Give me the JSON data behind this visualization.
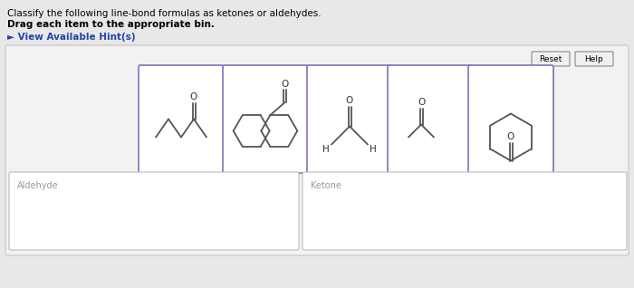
{
  "title_line1": "Classify the following line-bond formulas as ketones or aldehydes.",
  "title_line2": "Drag each item to the appropriate bin.",
  "hint_text": "► View Available Hint(s)",
  "bg_color": "#e8e8e8",
  "main_box_bg": "#f2f2f2",
  "main_box_border": "#cccccc",
  "card_bg": "#ffffff",
  "card_border": "#7777bb",
  "bin_border": "#bbbbbb",
  "bin_bg": "#ffffff",
  "bin_label_aldehyde": "Aldehyde",
  "bin_label_ketone": "Ketone",
  "button_reset": "Reset",
  "button_help": "Help",
  "mol_color": "#555555",
  "title_fontsize": 7.5,
  "hint_fontsize": 7.5,
  "hint_color": "#2244aa",
  "label_fontsize": 7
}
